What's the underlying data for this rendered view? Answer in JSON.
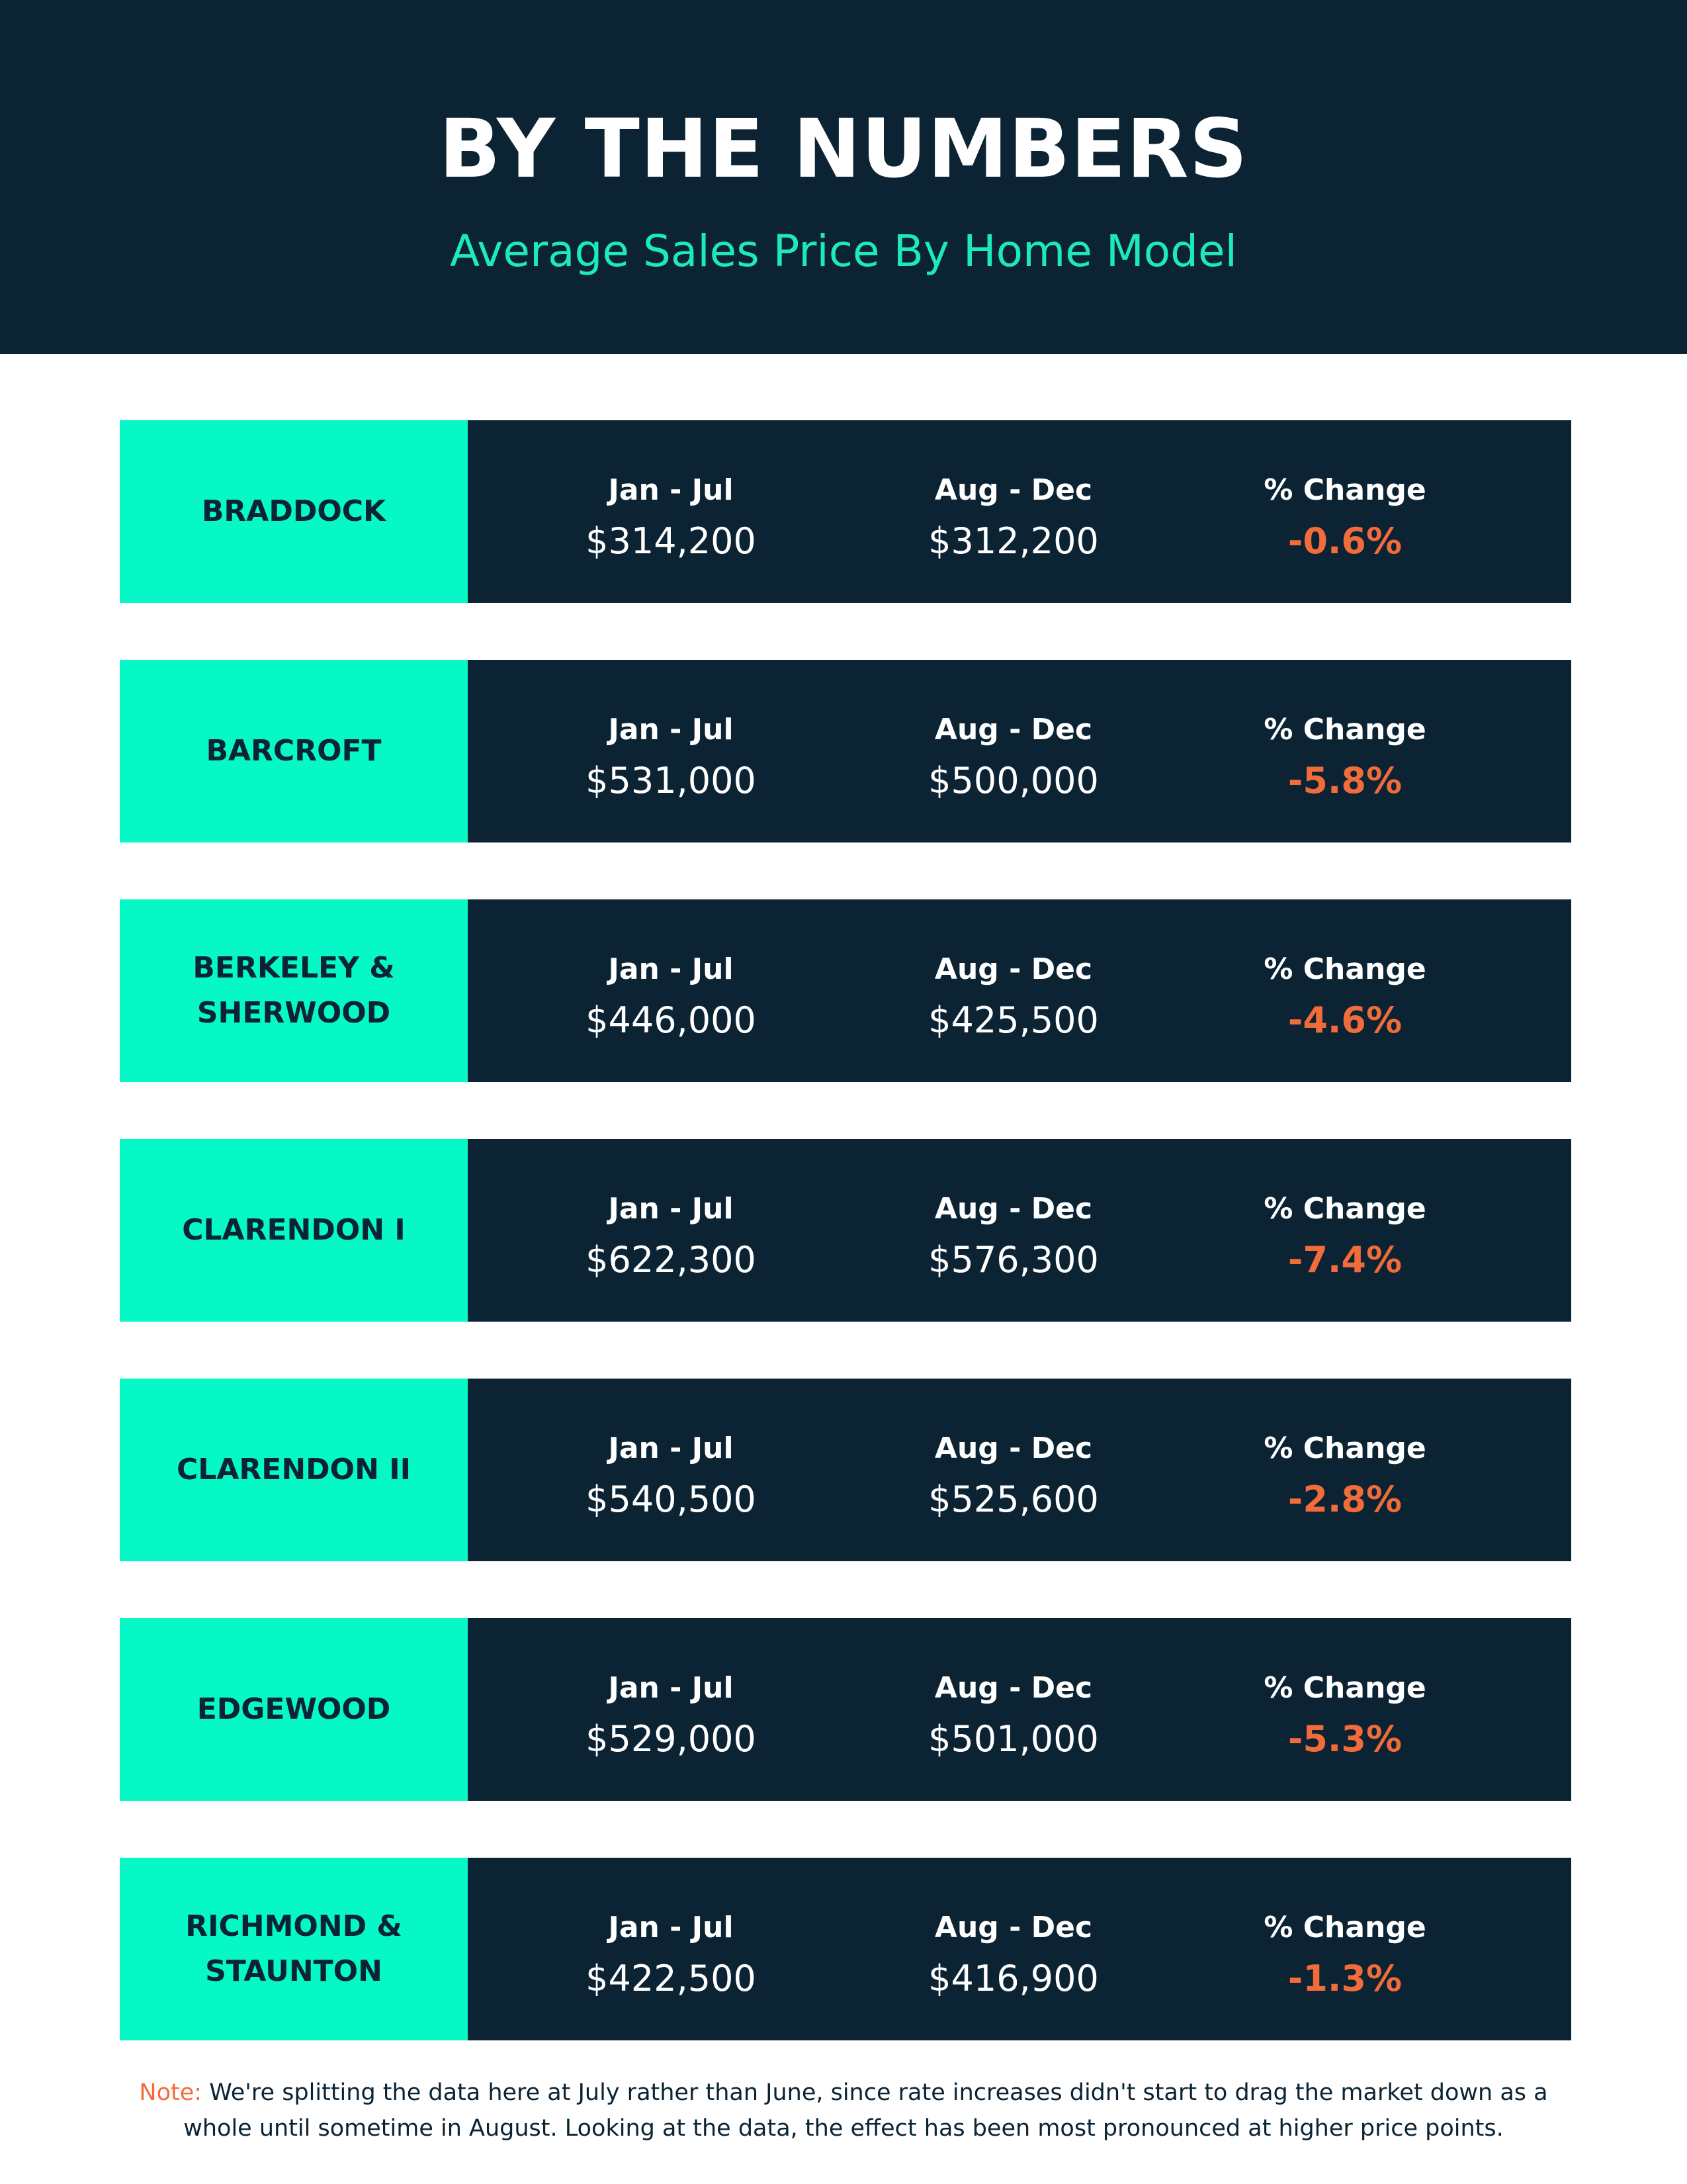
{
  "header": {
    "title": "BY THE NUMBERS",
    "subtitle": "Average Sales Price By Home Model"
  },
  "table": {
    "columns": [
      "Jan - Jul",
      "Aug - Dec",
      "% Change"
    ],
    "rows": [
      {
        "model": "BRADDOCK",
        "values": [
          "$314,200",
          "$312,200",
          "-0.6%"
        ]
      },
      {
        "model": "BARCROFT",
        "values": [
          "$531,000",
          "$500,000",
          "-5.8%"
        ]
      },
      {
        "model": "BERKELEY & SHERWOOD",
        "values": [
          "$446,000",
          "$425,500",
          "-4.6%"
        ]
      },
      {
        "model": "CLARENDON I",
        "values": [
          "$622,300",
          "$576,300",
          "-7.4%"
        ]
      },
      {
        "model": "CLARENDON II",
        "values": [
          "$540,500",
          "$525,600",
          "-2.8%"
        ]
      },
      {
        "model": "EDGEWOOD",
        "values": [
          "$529,000",
          "$501,000",
          "-5.3%"
        ]
      },
      {
        "model": "RICHMOND & STAUNTON",
        "values": [
          "$422,500",
          "$416,900",
          "-1.3%"
        ]
      }
    ]
  },
  "note": {
    "label": "Note:",
    "text": "We're splitting the data here at July rather than June, since rate increases didn't start to drag the market down as a whole until sometime in August. Looking at the data, the effect has been most pronounced at higher price points."
  }
}
